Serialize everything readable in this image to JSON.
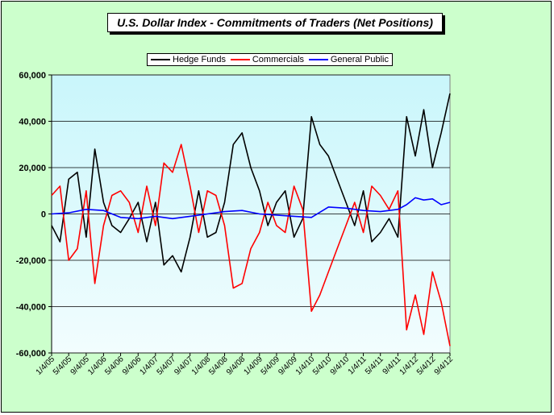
{
  "chart_data": {
    "type": "line",
    "title": "U.S. Dollar Index  - Commitments of Traders (Net Positions)",
    "xlabel": "",
    "ylabel": "",
    "ylim": [
      -60000,
      60000
    ],
    "yticks": [
      60000,
      40000,
      20000,
      0,
      -20000,
      -40000,
      -60000
    ],
    "ytick_labels": [
      "60,000",
      "40,000",
      "20,000",
      "0",
      "-20,000",
      "-40,000",
      "-60,000"
    ],
    "xlim": [
      "1/4/05",
      "9/4/12"
    ],
    "xtick_labels": [
      "1/4/05",
      "5/4/05",
      "9/4/05",
      "1/4/06",
      "5/4/06",
      "9/4/06",
      "1/4/07",
      "5/4/07",
      "9/4/07",
      "1/4/08",
      "5/4/08",
      "9/4/08",
      "1/4/09",
      "5/4/09",
      "9/4/09",
      "1/4/10",
      "5/4/10",
      "9/4/10",
      "1/4/11",
      "5/4/11",
      "9/4/11",
      "1/4/12",
      "5/4/12",
      "9/4/12"
    ],
    "grid": "horizontal",
    "legend": "top",
    "series": [
      {
        "name": "Hedge Funds",
        "color": "#000000",
        "x": [
          "1/4/05",
          "3/4/05",
          "5/4/05",
          "7/4/05",
          "9/4/05",
          "11/4/05",
          "1/4/06",
          "3/4/06",
          "5/4/06",
          "7/4/06",
          "9/4/06",
          "11/4/06",
          "1/4/07",
          "3/4/07",
          "5/4/07",
          "7/4/07",
          "9/4/07",
          "11/4/07",
          "1/4/08",
          "3/4/08",
          "5/4/08",
          "7/4/08",
          "9/4/08",
          "11/4/08",
          "1/4/09",
          "3/4/09",
          "5/4/09",
          "7/4/09",
          "9/4/09",
          "11/4/09",
          "1/4/10",
          "3/4/10",
          "5/4/10",
          "7/4/10",
          "9/4/10",
          "11/4/10",
          "1/4/11",
          "3/4/11",
          "5/4/11",
          "7/4/11",
          "9/4/11",
          "11/4/11",
          "1/4/12",
          "3/4/12",
          "5/4/12",
          "7/4/12",
          "9/4/12"
        ],
        "values": [
          -5000,
          -12000,
          15000,
          18000,
          -10000,
          28000,
          5000,
          -5000,
          -8000,
          -2000,
          5000,
          -12000,
          5000,
          -22000,
          -18000,
          -25000,
          -10000,
          10000,
          -10000,
          -8000,
          5000,
          30000,
          35000,
          20000,
          10000,
          -5000,
          5000,
          10000,
          -10000,
          -2000,
          42000,
          30000,
          25000,
          15000,
          5000,
          -5000,
          10000,
          -12000,
          -8000,
          -2000,
          -10000,
          42000,
          25000,
          45000,
          20000,
          35000,
          52000
        ]
      },
      {
        "name": "Commercials",
        "color": "#ff0000",
        "x": [
          "1/4/05",
          "3/4/05",
          "5/4/05",
          "7/4/05",
          "9/4/05",
          "11/4/05",
          "1/4/06",
          "3/4/06",
          "5/4/06",
          "7/4/06",
          "9/4/06",
          "11/4/06",
          "1/4/07",
          "3/4/07",
          "5/4/07",
          "7/4/07",
          "9/4/07",
          "11/4/07",
          "1/4/08",
          "3/4/08",
          "5/4/08",
          "7/4/08",
          "9/4/08",
          "11/4/08",
          "1/4/09",
          "3/4/09",
          "5/4/09",
          "7/4/09",
          "9/4/09",
          "11/4/09",
          "1/4/10",
          "3/4/10",
          "5/4/10",
          "7/4/10",
          "9/4/10",
          "11/4/10",
          "1/4/11",
          "3/4/11",
          "5/4/11",
          "7/4/11",
          "9/4/11",
          "11/4/11",
          "1/4/12",
          "3/4/12",
          "5/4/12",
          "7/4/12",
          "9/4/12"
        ],
        "values": [
          8000,
          12000,
          -20000,
          -15000,
          10000,
          -30000,
          -5000,
          8000,
          10000,
          5000,
          -8000,
          12000,
          -5000,
          22000,
          18000,
          30000,
          12000,
          -8000,
          10000,
          8000,
          -5000,
          -32000,
          -30000,
          -15000,
          -8000,
          5000,
          -5000,
          -8000,
          12000,
          2000,
          -42000,
          -35000,
          -25000,
          -15000,
          -5000,
          5000,
          -8000,
          12000,
          8000,
          2000,
          10000,
          -50000,
          -35000,
          -52000,
          -25000,
          -38000,
          -57000
        ]
      },
      {
        "name": "General Public",
        "color": "#0000ff",
        "x": [
          "1/4/05",
          "5/4/05",
          "9/4/05",
          "1/4/06",
          "5/4/06",
          "9/4/06",
          "1/4/07",
          "5/4/07",
          "9/4/07",
          "1/4/08",
          "5/4/08",
          "9/4/08",
          "1/4/09",
          "5/4/09",
          "9/4/09",
          "1/4/10",
          "5/4/10",
          "9/4/10",
          "1/4/11",
          "5/4/11",
          "9/4/11",
          "11/4/11",
          "1/4/12",
          "3/4/12",
          "5/4/12",
          "7/4/12",
          "9/4/12"
        ],
        "values": [
          0,
          500,
          2000,
          1500,
          -1500,
          -2000,
          -1000,
          -2000,
          -1000,
          0,
          1000,
          1500,
          0,
          -500,
          -1000,
          -1500,
          3000,
          2500,
          1500,
          1000,
          2000,
          4000,
          7000,
          6000,
          6500,
          4000,
          5000
        ]
      }
    ]
  }
}
